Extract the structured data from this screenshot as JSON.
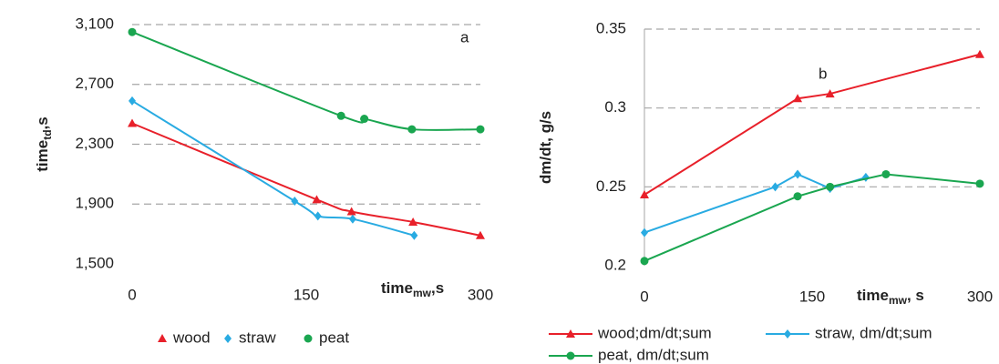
{
  "chart_data": [
    {
      "type": "scatter",
      "annotation": "a",
      "y_label": {
        "text": "time",
        "sub": "td",
        "suffix": ",s"
      },
      "x_label": {
        "text": "time",
        "sub": "mw",
        "suffix": ",s"
      },
      "xlim": [
        0,
        300
      ],
      "xticks": [
        0,
        150,
        300
      ],
      "ylim": [
        1500,
        3100
      ],
      "yticks": [
        {
          "value": 1500,
          "label": "1,500"
        },
        {
          "value": 1900,
          "label": "1,900"
        },
        {
          "value": 2300,
          "label": "2,300"
        },
        {
          "value": 2700,
          "label": "2,700"
        },
        {
          "value": 3100,
          "label": "3,100"
        }
      ],
      "grid": true,
      "series": [
        {
          "name": "wood",
          "color": "#e8202a",
          "marker": "triangle",
          "x": [
            0,
            159,
            189,
            242,
            300
          ],
          "values": [
            2440,
            1930,
            1850,
            1780,
            1690
          ]
        },
        {
          "name": "straw",
          "color": "#29abe2",
          "marker": "diamond",
          "x": [
            0,
            140,
            160,
            190,
            243
          ],
          "values": [
            2590,
            1920,
            1820,
            1800,
            1690
          ]
        },
        {
          "name": "peat",
          "color": "#1aa650",
          "marker": "circle",
          "x": [
            0,
            180,
            200,
            241,
            300
          ],
          "values": [
            3050,
            2490,
            2470,
            2400,
            2400
          ]
        }
      ]
    },
    {
      "type": "line",
      "annotation": "b",
      "y_label": {
        "text": "dm/dt, g/s"
      },
      "x_label": {
        "text": "time",
        "sub": "mw",
        "suffix": ", s"
      },
      "xlim": [
        0,
        300
      ],
      "xticks": [
        0,
        150,
        300
      ],
      "ylim": [
        0.2,
        0.35
      ],
      "yticks": [
        0.2,
        0.25,
        0.3,
        0.35
      ],
      "grid": true,
      "series": [
        {
          "name": "wood;dm/dt;sum",
          "color": "#e8202a",
          "marker": "triangle",
          "x": [
            0,
            137,
            166,
            300
          ],
          "values": [
            0.245,
            0.306,
            0.309,
            0.334
          ]
        },
        {
          "name": "straw, dm/dt;sum",
          "color": "#29abe2",
          "marker": "diamond",
          "x": [
            0,
            117,
            137,
            166,
            198
          ],
          "values": [
            0.221,
            0.25,
            0.258,
            0.249,
            0.256
          ]
        },
        {
          "name": "peat, dm/dt;sum",
          "color": "#1aa650",
          "marker": "circle",
          "x": [
            0,
            137,
            166,
            216,
            300
          ],
          "values": [
            0.203,
            0.244,
            0.25,
            0.258,
            0.252
          ]
        }
      ]
    }
  ]
}
